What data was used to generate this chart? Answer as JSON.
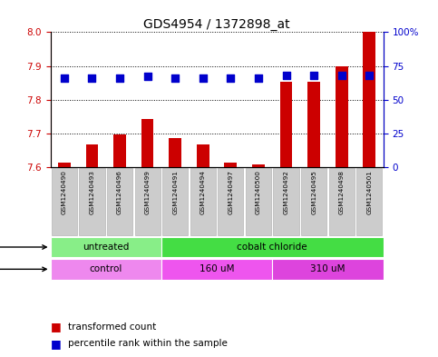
{
  "title": "GDS4954 / 1372898_at",
  "samples": [
    "GSM1240490",
    "GSM1240493",
    "GSM1240496",
    "GSM1240499",
    "GSM1240491",
    "GSM1240494",
    "GSM1240497",
    "GSM1240500",
    "GSM1240492",
    "GSM1240495",
    "GSM1240498",
    "GSM1240501"
  ],
  "transformed_count": [
    7.614,
    7.668,
    7.697,
    7.742,
    7.687,
    7.668,
    7.614,
    7.609,
    7.852,
    7.852,
    7.9,
    8.0
  ],
  "percentile_rank": [
    66,
    66,
    66,
    67,
    66,
    66,
    66,
    66,
    68,
    68,
    68,
    68
  ],
  "ylim_left": [
    7.6,
    8.0
  ],
  "ylim_right": [
    0,
    100
  ],
  "yticks_left": [
    7.6,
    7.7,
    7.8,
    7.9,
    8.0
  ],
  "yticks_right": [
    0,
    25,
    50,
    75,
    100
  ],
  "ytick_labels_right": [
    "0",
    "25",
    "50",
    "75",
    "100%"
  ],
  "bar_color": "#cc0000",
  "dot_color": "#0000cc",
  "agent_groups": [
    {
      "label": "untreated",
      "start": 0,
      "end": 4,
      "color": "#88ee88"
    },
    {
      "label": "cobalt chloride",
      "start": 4,
      "end": 12,
      "color": "#44dd44"
    }
  ],
  "dose_groups": [
    {
      "label": "control",
      "start": 0,
      "end": 4,
      "color": "#ee88ee"
    },
    {
      "label": "160 uM",
      "start": 4,
      "end": 8,
      "color": "#ee55ee"
    },
    {
      "label": "310 uM",
      "start": 8,
      "end": 12,
      "color": "#dd44dd"
    }
  ],
  "legend_red_label": "transformed count",
  "legend_blue_label": "percentile rank within the sample",
  "bar_color_legend": "#cc0000",
  "dot_color_legend": "#0000cc",
  "sample_box_color": "#cccccc",
  "sample_box_edge": "#aaaaaa",
  "bar_width": 0.45,
  "dot_size": 28,
  "bar_base": 7.6
}
